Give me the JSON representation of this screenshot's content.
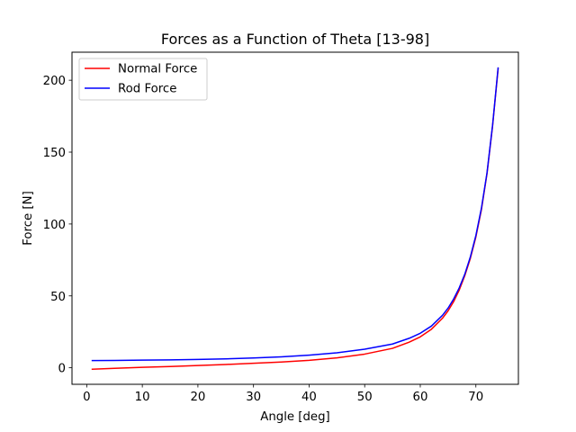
{
  "chart_data": {
    "type": "line",
    "title": "Forces as a Function of Theta [13-98]",
    "xlabel": "Angle [deg]",
    "ylabel": "Force [N]",
    "xlim": [
      -2.65,
      77.65
    ],
    "ylim": [
      -11.5,
      219.5
    ],
    "xticks": [
      0,
      10,
      20,
      30,
      40,
      50,
      60,
      70
    ],
    "yticks": [
      0,
      50,
      100,
      150,
      200
    ],
    "grid": false,
    "legend_position": "upper left",
    "series": [
      {
        "name": "Normal Force",
        "color": "#ff0000",
        "x": [
          1,
          5,
          10,
          15,
          20,
          25,
          30,
          35,
          40,
          45,
          50,
          55,
          58,
          60,
          62,
          64,
          65,
          66,
          67,
          68,
          69,
          70,
          71,
          72,
          73,
          74
        ],
        "y": [
          -1.0,
          -0.4,
          0.3,
          0.9,
          1.6,
          2.3,
          3.1,
          4.0,
          5.2,
          6.9,
          9.5,
          13.5,
          17.8,
          21.5,
          26.8,
          34.5,
          39.6,
          46.0,
          54.0,
          64.0,
          76.0,
          91.0,
          110.0,
          135.0,
          168.0,
          208.0
        ]
      },
      {
        "name": "Rod Force",
        "color": "#0000ff",
        "x": [
          1,
          5,
          10,
          15,
          20,
          25,
          30,
          35,
          40,
          45,
          50,
          55,
          58,
          60,
          62,
          64,
          65,
          66,
          67,
          68,
          69,
          70,
          71,
          72,
          73,
          74
        ],
        "y": [
          5.0,
          5.1,
          5.3,
          5.5,
          5.8,
          6.2,
          6.8,
          7.6,
          8.8,
          10.4,
          12.9,
          16.5,
          20.5,
          24.0,
          29.0,
          36.5,
          41.5,
          47.8,
          55.5,
          65.0,
          77.0,
          92.0,
          111.0,
          135.5,
          168.5,
          208.5
        ]
      }
    ]
  }
}
